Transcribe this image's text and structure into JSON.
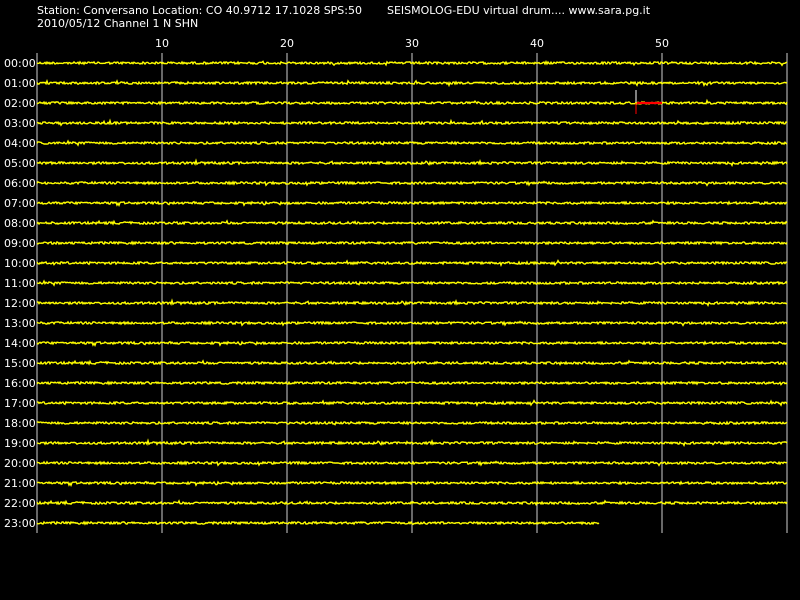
{
  "header": {
    "station_line": "Station: Conversano Location: CO 40.9712 17.1028 SPS:50",
    "date_channel_line": "2010/05/12  Channel 1 N SHN",
    "app_line": "SEISMOLOG-EDU virtual drum.... www.sara.pg.it"
  },
  "drum": {
    "minute_ticks": [
      "10",
      "20",
      "30",
      "40",
      "50"
    ],
    "hour_labels": [
      "00:00",
      "01:00",
      "02:00",
      "03:00",
      "04:00",
      "05:00",
      "06:00",
      "07:00",
      "08:00",
      "09:00",
      "10:00",
      "11:00",
      "12:00",
      "13:00",
      "14:00",
      "15:00",
      "16:00",
      "17:00",
      "18:00",
      "19:00",
      "20:00",
      "21:00",
      "22:00",
      "23:00"
    ],
    "last_trace_end_minute": 45,
    "event_marker": {
      "hour": "02:00",
      "start_minute": 48,
      "end_minute": 50
    }
  },
  "colors": {
    "background": "#000000",
    "trace": "#ffff00",
    "grid": "#d0d0d0",
    "text": "#ffffff",
    "event": "#ff0000"
  }
}
